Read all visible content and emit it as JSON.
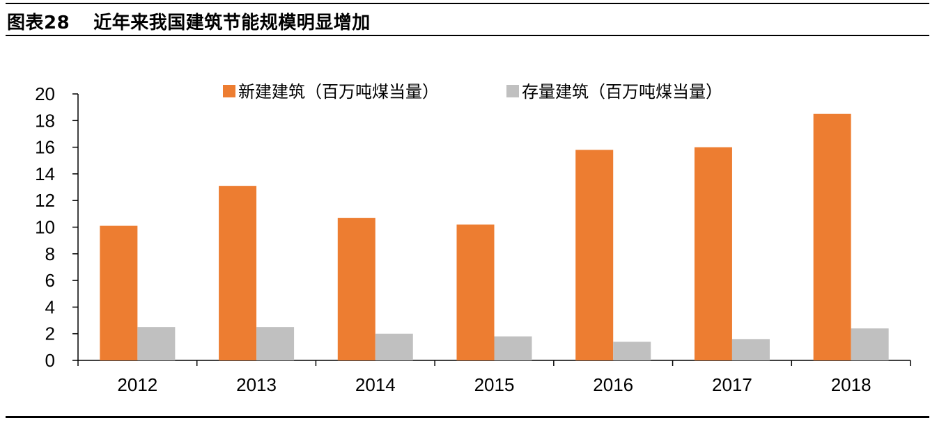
{
  "figure": {
    "label": "图表28",
    "caption": "近年来我国建筑节能规模明显增加"
  },
  "colors": {
    "new_building": "#ED7D31",
    "existing_building": "#C0C0C0",
    "axis": "#000000"
  },
  "chart_data": {
    "type": "bar",
    "title": "近年来我国建筑节能规模明显增加",
    "categories": [
      "2012",
      "2013",
      "2014",
      "2015",
      "2016",
      "2017",
      "2018"
    ],
    "series": [
      {
        "name": "新建建筑（百万吨煤当量）",
        "values": [
          10.1,
          13.1,
          10.7,
          10.2,
          15.8,
          16.0,
          18.5
        ]
      },
      {
        "name": "存量建筑（百万吨煤当量）",
        "values": [
          2.5,
          2.5,
          2.0,
          1.8,
          1.4,
          1.6,
          2.4
        ]
      }
    ],
    "ylim": [
      0,
      20
    ],
    "yticks": [
      0,
      2,
      4,
      6,
      8,
      10,
      12,
      14,
      16,
      18,
      20
    ],
    "xlabel": "",
    "ylabel": "",
    "legend_position": "top-center",
    "grid": false
  }
}
